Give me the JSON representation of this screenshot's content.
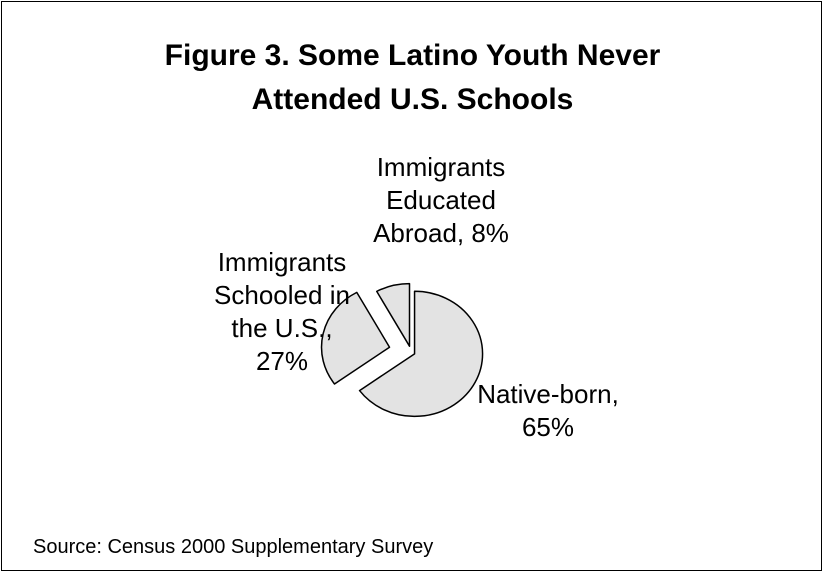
{
  "chart_data": {
    "type": "pie",
    "title_lines": [
      "Figure 3. Some Latino Youth Never",
      "Attended U.S. Schools"
    ],
    "slices": [
      {
        "label_lines": [
          "Native-born,",
          "65%"
        ],
        "value": 65
      },
      {
        "label_lines": [
          "Immigrants",
          "Schooled in",
          "the U.S.,",
          "27%"
        ],
        "value": 27
      },
      {
        "label_lines": [
          "Immigrants",
          "Educated",
          "Abroad, 8%"
        ],
        "value": 8
      }
    ],
    "slice_fill": "#e3e3e3",
    "slice_stroke": "#000000",
    "exploded": true,
    "source": "Source: Census 2000 Supplementary Survey"
  }
}
